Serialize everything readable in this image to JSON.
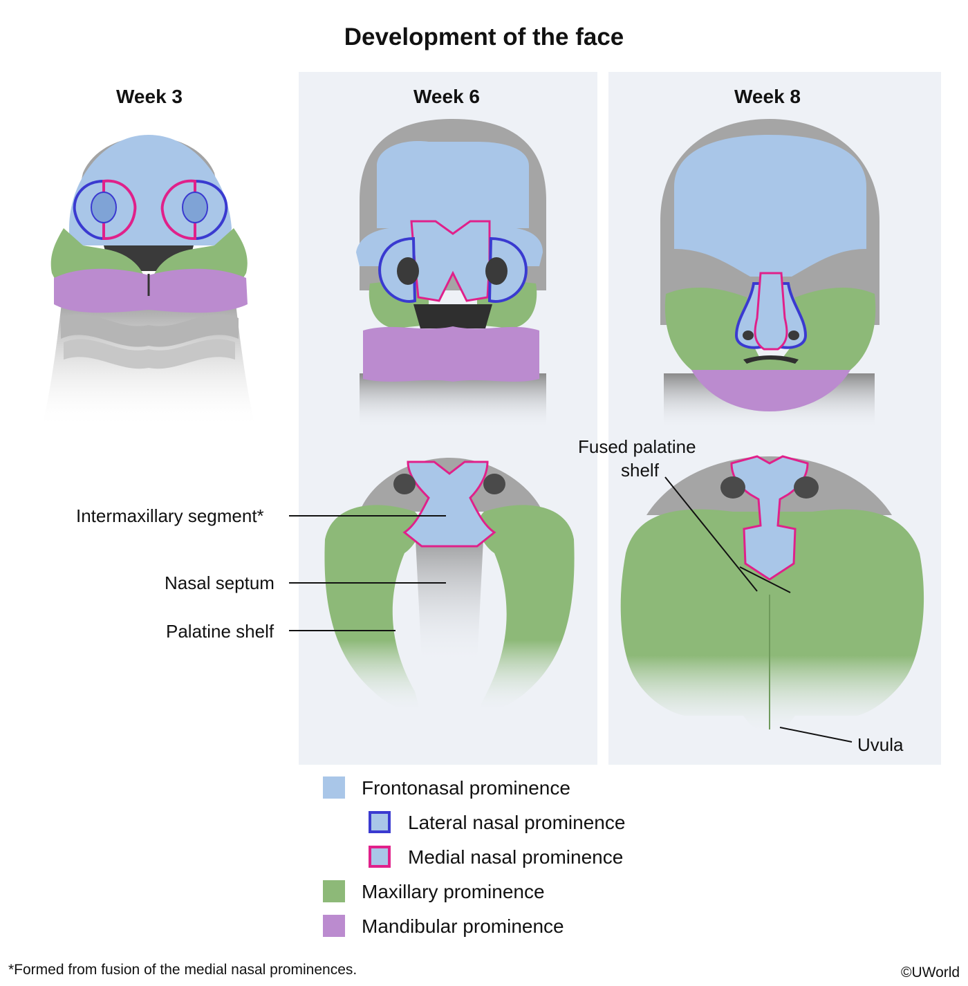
{
  "title": "Development of the face",
  "stages": {
    "week3": "Week 3",
    "week6": "Week 6",
    "week8": "Week 8"
  },
  "labels": {
    "intermaxillary": "Intermaxillary segment*",
    "nasal_septum": "Nasal septum",
    "palatine_shelf": "Palatine shelf",
    "fused_palatine_1": "Fused palatine",
    "fused_palatine_2": "shelf",
    "uvula": "Uvula"
  },
  "legend": [
    {
      "label": "Frontonasal prominence",
      "fill": "#a9c6e8",
      "border": "#a9c6e8"
    },
    {
      "label": "Lateral nasal prominence",
      "fill": "#a9c6e8",
      "border": "#3a3ad0"
    },
    {
      "label": "Medial nasal prominence",
      "fill": "#a9c6e8",
      "border": "#e0208a"
    },
    {
      "label": "Maxillary prominence",
      "fill": "#8db978",
      "border": "#8db978"
    },
    {
      "label": "Mandibular prominence",
      "fill": "#bb8bcf",
      "border": "#bb8bcf"
    }
  ],
  "footnote": "*Formed from fusion of the medial nasal prominences.",
  "copyright": "©UWorld",
  "colors": {
    "frontonasal": "#a9c6e8",
    "lateral_nasal_border": "#3a3ad0",
    "medial_nasal_border": "#e0208a",
    "maxillary": "#8db978",
    "mandibular": "#bb8bcf",
    "tissue_gray": "#9a9a9a",
    "panel_bg": "#eef1f6"
  }
}
